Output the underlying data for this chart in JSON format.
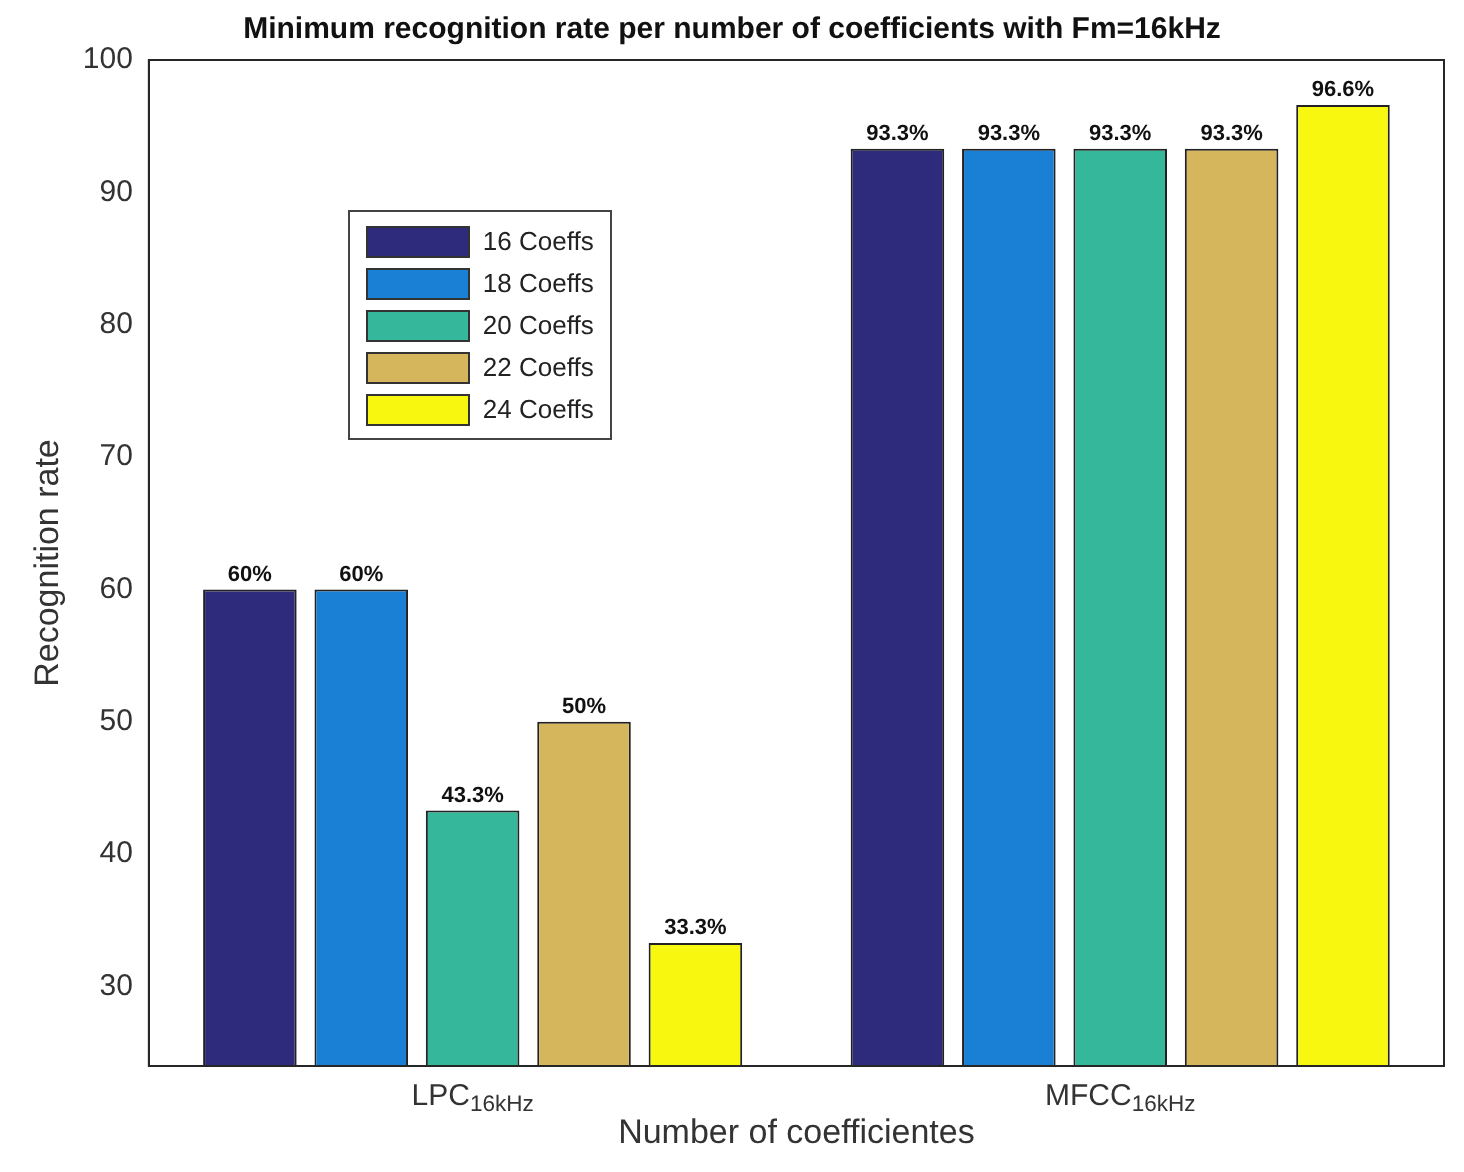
{
  "chart_data": {
    "type": "bar",
    "title": "Minimum recognition rate per number of coefficients with Fm=16kHz",
    "xlabel": "Number of coefficientes",
    "ylabel": "Recognition rate",
    "categories": [
      "LPC$_{16kHz}$",
      "MFCC$_{16kHz}$"
    ],
    "series": [
      {
        "name": "16 Coeffs",
        "color": "#2e2a7c",
        "values": [
          60,
          93.3
        ],
        "value_labels": [
          "60%",
          "93.3%"
        ]
      },
      {
        "name": "18 Coeffs",
        "color": "#1a80d6",
        "values": [
          60,
          93.3
        ],
        "value_labels": [
          "60%",
          "93.3%"
        ]
      },
      {
        "name": "20 Coeffs",
        "color": "#35b79b",
        "values": [
          43.3,
          93.3
        ],
        "value_labels": [
          "43.3%",
          "93.3%"
        ]
      },
      {
        "name": "22 Coeffs",
        "color": "#d6b65c",
        "values": [
          50,
          93.3
        ],
        "value_labels": [
          "50%",
          "93.3%"
        ]
      },
      {
        "name": "24 Coeffs",
        "color": "#f7f70f",
        "values": [
          33.3,
          96.6
        ],
        "value_labels": [
          "33.3%",
          "96.6%"
        ]
      }
    ],
    "ylim": [
      24,
      100
    ],
    "yticks": [
      30,
      40,
      50,
      60,
      70,
      80,
      90,
      100
    ],
    "grid": false,
    "legend": "top left"
  }
}
